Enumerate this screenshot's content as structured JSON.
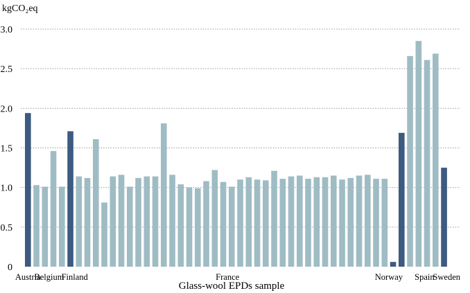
{
  "chart_data": {
    "type": "bar",
    "unit_label": "kgCO₂eq",
    "xlabel": "Glass-wool EPDs sample",
    "ylim": [
      0,
      3.0
    ],
    "yticks": [
      {
        "value": 0,
        "label": "0"
      },
      {
        "value": 0.5,
        "label": "0.5"
      },
      {
        "value": 1.0,
        "label": "1.0"
      },
      {
        "value": 1.5,
        "label": "1.5"
      },
      {
        "value": 2.0,
        "label": "2.0"
      },
      {
        "value": 2.5,
        "label": "2.5"
      },
      {
        "value": 3.0,
        "label": "3.0"
      }
    ],
    "grid": "horizontal dotted",
    "colors": {
      "average": "#3d5a80",
      "sample": "#9fbcc4"
    },
    "values": [
      1.94,
      1.03,
      1.01,
      1.46,
      1.01,
      1.71,
      1.14,
      1.12,
      1.61,
      0.81,
      1.14,
      1.16,
      1.01,
      1.12,
      1.14,
      1.14,
      1.81,
      1.16,
      1.04,
      1.0,
      0.99,
      1.08,
      1.22,
      1.07,
      1.01,
      1.1,
      1.13,
      1.1,
      1.09,
      1.21,
      1.11,
      1.14,
      1.15,
      1.11,
      1.13,
      1.13,
      1.15,
      1.1,
      1.12,
      1.15,
      1.16,
      1.11,
      1.11,
      0.06,
      1.69,
      2.66,
      2.85,
      2.61,
      2.69,
      1.25
    ],
    "highlighted_indices": [
      0,
      5,
      43,
      44,
      49
    ],
    "category_labels": [
      {
        "label": "Austria",
        "index": 0
      },
      {
        "label": "Belgium",
        "index": 2.5
      },
      {
        "label": "Finland",
        "index": 5.5
      },
      {
        "label": "France",
        "index": 23.5
      },
      {
        "label": "Norway",
        "index": 42.5
      },
      {
        "label": "Spain",
        "index": 46.7
      },
      {
        "label": "Sweden",
        "index": 49.3
      }
    ]
  }
}
